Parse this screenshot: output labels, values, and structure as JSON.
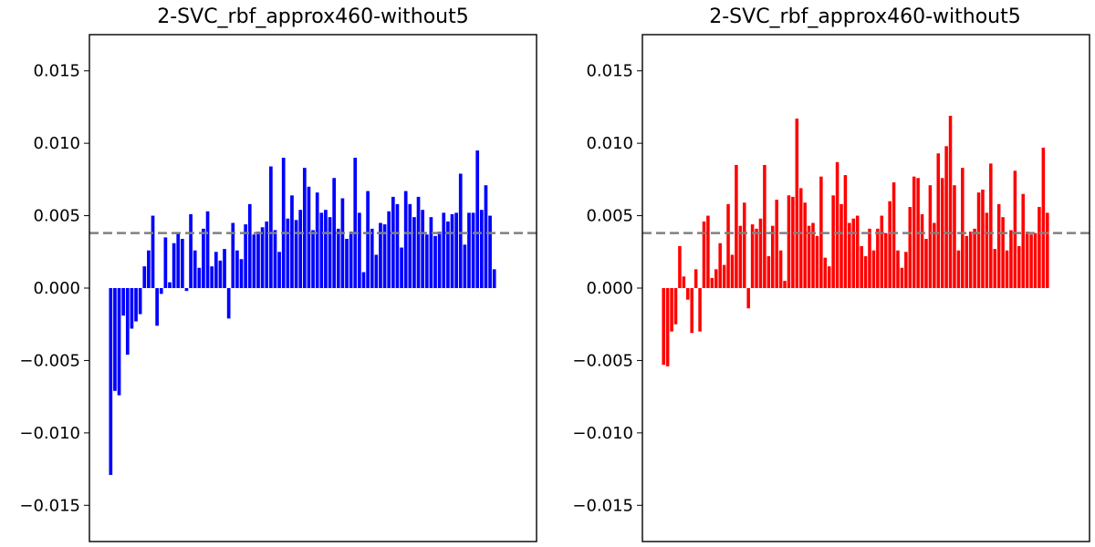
{
  "chart_data": [
    {
      "type": "bar",
      "title": "2-SVC_rbf_approx460-without5",
      "xlabel": "",
      "ylabel": "",
      "ylim": [
        -0.0175,
        0.0175
      ],
      "yticks": [
        -0.015,
        -0.01,
        -0.005,
        0.0,
        0.005,
        0.01,
        0.015
      ],
      "ytick_labels": [
        "−0.015",
        "−0.010",
        "−0.005",
        "0.000",
        "0.005",
        "0.010",
        "0.015"
      ],
      "xticks_visible": false,
      "grid": false,
      "reference_line": {
        "y": 0.0038,
        "style": "dashed",
        "color": "#808080"
      },
      "bar_color": "#0000ff",
      "values": [
        -0.0129,
        -0.0071,
        -0.0074,
        -0.0019,
        -0.0046,
        -0.0028,
        -0.0023,
        -0.0018,
        0.0015,
        0.0026,
        0.005,
        -0.0026,
        -0.0004,
        0.0035,
        0.0004,
        0.0031,
        0.0038,
        0.0034,
        -0.0002,
        0.0051,
        0.0026,
        0.0014,
        0.0041,
        0.0053,
        0.0015,
        0.0025,
        0.0019,
        0.0027,
        -0.0021,
        0.0045,
        0.0026,
        0.002,
        0.0044,
        0.0058,
        0.0037,
        0.0039,
        0.0042,
        0.0046,
        0.0084,
        0.004,
        0.0025,
        0.009,
        0.0048,
        0.0064,
        0.0047,
        0.0054,
        0.0083,
        0.007,
        0.004,
        0.0066,
        0.0052,
        0.0054,
        0.0049,
        0.0076,
        0.0041,
        0.0062,
        0.0034,
        0.0039,
        0.009,
        0.0052,
        0.0011,
        0.0067,
        0.0041,
        0.0023,
        0.0045,
        0.0044,
        0.0053,
        0.0063,
        0.0058,
        0.0028,
        0.0067,
        0.0058,
        0.0049,
        0.0063,
        0.0054,
        0.0037,
        0.0049,
        0.0036,
        0.0039,
        0.0052,
        0.0046,
        0.0051,
        0.0052,
        0.0079,
        0.003,
        0.0052,
        0.0052,
        0.0095,
        0.0054,
        0.0071,
        0.005,
        0.0013
      ]
    },
    {
      "type": "bar",
      "title": "2-SVC_rbf_approx460-without5",
      "xlabel": "",
      "ylabel": "",
      "ylim": [
        -0.0175,
        0.0175
      ],
      "yticks": [
        -0.015,
        -0.01,
        -0.005,
        0.0,
        0.005,
        0.01,
        0.015
      ],
      "ytick_labels": [
        "−0.015",
        "−0.010",
        "−0.005",
        "0.000",
        "0.005",
        "0.010",
        "0.015"
      ],
      "xticks_visible": false,
      "grid": false,
      "reference_line": {
        "y": 0.0038,
        "style": "dashed",
        "color": "#808080"
      },
      "bar_color": "#ff0000",
      "values": [
        -0.0053,
        -0.0054,
        -0.003,
        -0.0025,
        0.0029,
        0.0008,
        -0.0008,
        -0.0031,
        0.0013,
        -0.003,
        0.0046,
        0.005,
        0.0007,
        0.0013,
        0.0031,
        0.0016,
        0.0058,
        0.0023,
        0.0085,
        0.0043,
        0.0059,
        -0.0014,
        0.0044,
        0.0041,
        0.0048,
        0.0085,
        0.0022,
        0.0043,
        0.0061,
        0.0026,
        0.0005,
        0.0064,
        0.0063,
        0.0117,
        0.0069,
        0.0059,
        0.0043,
        0.0045,
        0.0036,
        0.0077,
        0.0021,
        0.0015,
        0.0064,
        0.0087,
        0.0058,
        0.0078,
        0.0045,
        0.0048,
        0.005,
        0.0029,
        0.0022,
        0.0041,
        0.0026,
        0.0041,
        0.005,
        0.0038,
        0.006,
        0.0073,
        0.0026,
        0.0014,
        0.0025,
        0.0056,
        0.0077,
        0.0076,
        0.0051,
        0.0034,
        0.0071,
        0.0045,
        0.0093,
        0.0076,
        0.0098,
        0.0119,
        0.0071,
        0.0026,
        0.0083,
        0.0036,
        0.0039,
        0.0041,
        0.0066,
        0.0068,
        0.0052,
        0.0086,
        0.0027,
        0.0058,
        0.0049,
        0.0026,
        0.004,
        0.0081,
        0.0029,
        0.0065,
        0.0039,
        0.0037,
        0.0038,
        0.0056,
        0.0097,
        0.0052
      ]
    }
  ]
}
